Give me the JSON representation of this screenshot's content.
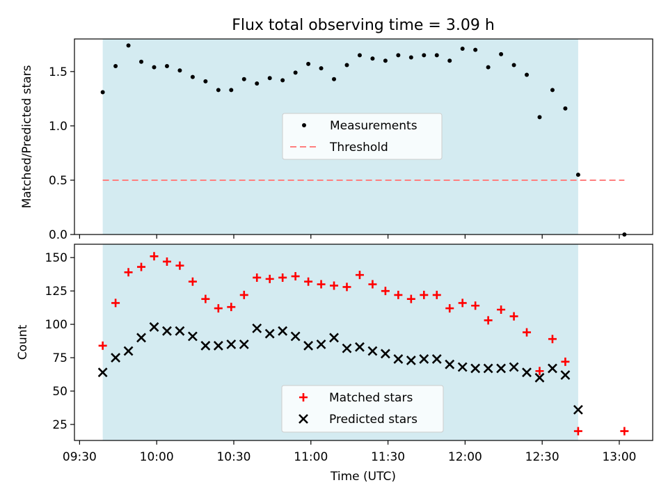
{
  "figure": {
    "title": "Flux total observing time = 3.09 h",
    "xlabel": "Time (UTC)"
  },
  "colors": {
    "span": "#d4ebf1",
    "measurement": "#000000",
    "threshold": "#ff7f7f",
    "matched": "#ff0000",
    "predicted": "#000000",
    "axis": "#000000"
  },
  "chart_data": [
    {
      "type": "scatter",
      "panel": "top",
      "ylabel": "Matched/Predicted stars",
      "xlim": [
        "09:28",
        "13:13"
      ],
      "ylim": [
        0,
        1.8
      ],
      "x_ticks": [
        "09:30",
        "10:00",
        "10:30",
        "11:00",
        "11:30",
        "12:00",
        "12:30",
        "13:00"
      ],
      "y_ticks": [
        "0.0",
        "0.5",
        "1.0",
        "1.5"
      ],
      "shaded_span": [
        "09:39",
        "12:44"
      ],
      "legend": {
        "placement": "center",
        "items": [
          "Measurements",
          "Threshold"
        ]
      },
      "threshold": {
        "name": "Threshold",
        "value": 0.5,
        "x_range": [
          "09:39",
          "13:02"
        ]
      },
      "series": [
        {
          "name": "Measurements",
          "marker": "dot",
          "x": [
            "09:39",
            "09:44",
            "09:49",
            "09:54",
            "09:59",
            "10:04",
            "10:09",
            "10:14",
            "10:19",
            "10:24",
            "10:29",
            "10:34",
            "10:39",
            "10:44",
            "10:49",
            "10:54",
            "10:59",
            "11:04",
            "11:09",
            "11:14",
            "11:19",
            "11:24",
            "11:29",
            "11:34",
            "11:39",
            "11:44",
            "11:49",
            "11:54",
            "11:59",
            "12:04",
            "12:09",
            "12:14",
            "12:19",
            "12:24",
            "12:29",
            "12:34",
            "12:39",
            "12:44",
            "13:02"
          ],
          "y": [
            1.31,
            1.55,
            1.74,
            1.59,
            1.54,
            1.55,
            1.51,
            1.45,
            1.41,
            1.33,
            1.33,
            1.43,
            1.39,
            1.44,
            1.42,
            1.49,
            1.57,
            1.53,
            1.43,
            1.56,
            1.65,
            1.62,
            1.6,
            1.65,
            1.63,
            1.65,
            1.65,
            1.6,
            1.71,
            1.7,
            1.54,
            1.66,
            1.56,
            1.47,
            1.08,
            1.33,
            1.16,
            0.55,
            0.0
          ]
        }
      ]
    },
    {
      "type": "scatter",
      "panel": "bottom",
      "ylabel": "Count",
      "xlabel": "Time (UTC)",
      "xlim": [
        "09:28",
        "13:13"
      ],
      "ylim": [
        13,
        160
      ],
      "x_ticks": [
        "09:30",
        "10:00",
        "10:30",
        "11:00",
        "11:30",
        "12:00",
        "12:30",
        "13:00"
      ],
      "y_ticks": [
        "25",
        "50",
        "75",
        "100",
        "125",
        "150"
      ],
      "shaded_span": [
        "09:39",
        "12:44"
      ],
      "legend": {
        "placement": "lower center",
        "items": [
          "Matched stars",
          "Predicted stars"
        ]
      },
      "series": [
        {
          "name": "Matched stars",
          "marker": "plus",
          "x": [
            "09:39",
            "09:44",
            "09:49",
            "09:54",
            "09:59",
            "10:04",
            "10:09",
            "10:14",
            "10:19",
            "10:24",
            "10:29",
            "10:34",
            "10:39",
            "10:44",
            "10:49",
            "10:54",
            "10:59",
            "11:04",
            "11:09",
            "11:14",
            "11:19",
            "11:24",
            "11:29",
            "11:34",
            "11:39",
            "11:44",
            "11:49",
            "11:54",
            "11:59",
            "12:04",
            "12:09",
            "12:14",
            "12:19",
            "12:24",
            "12:29",
            "12:34",
            "12:39",
            "12:44",
            "13:02"
          ],
          "y": [
            84,
            116,
            139,
            143,
            151,
            147,
            144,
            132,
            119,
            112,
            113,
            122,
            135,
            134,
            135,
            136,
            132,
            130,
            129,
            128,
            137,
            130,
            125,
            122,
            119,
            122,
            122,
            112,
            116,
            114,
            103,
            111,
            106,
            94,
            65,
            89,
            72,
            20,
            20
          ]
        },
        {
          "name": "Predicted stars",
          "marker": "x",
          "x": [
            "09:39",
            "09:44",
            "09:49",
            "09:54",
            "09:59",
            "10:04",
            "10:09",
            "10:14",
            "10:19",
            "10:24",
            "10:29",
            "10:34",
            "10:39",
            "10:44",
            "10:49",
            "10:54",
            "10:59",
            "11:04",
            "11:09",
            "11:14",
            "11:19",
            "11:24",
            "11:29",
            "11:34",
            "11:39",
            "11:44",
            "11:49",
            "11:54",
            "11:59",
            "12:04",
            "12:09",
            "12:14",
            "12:19",
            "12:24",
            "12:29",
            "12:34",
            "12:39",
            "12:44"
          ],
          "y": [
            64,
            75,
            80,
            90,
            98,
            95,
            95,
            91,
            84,
            84,
            85,
            85,
            97,
            93,
            95,
            91,
            84,
            85,
            90,
            82,
            83,
            80,
            78,
            74,
            73,
            74,
            74,
            70,
            68,
            67,
            67,
            67,
            68,
            64,
            60,
            67,
            62,
            36
          ]
        }
      ]
    }
  ]
}
